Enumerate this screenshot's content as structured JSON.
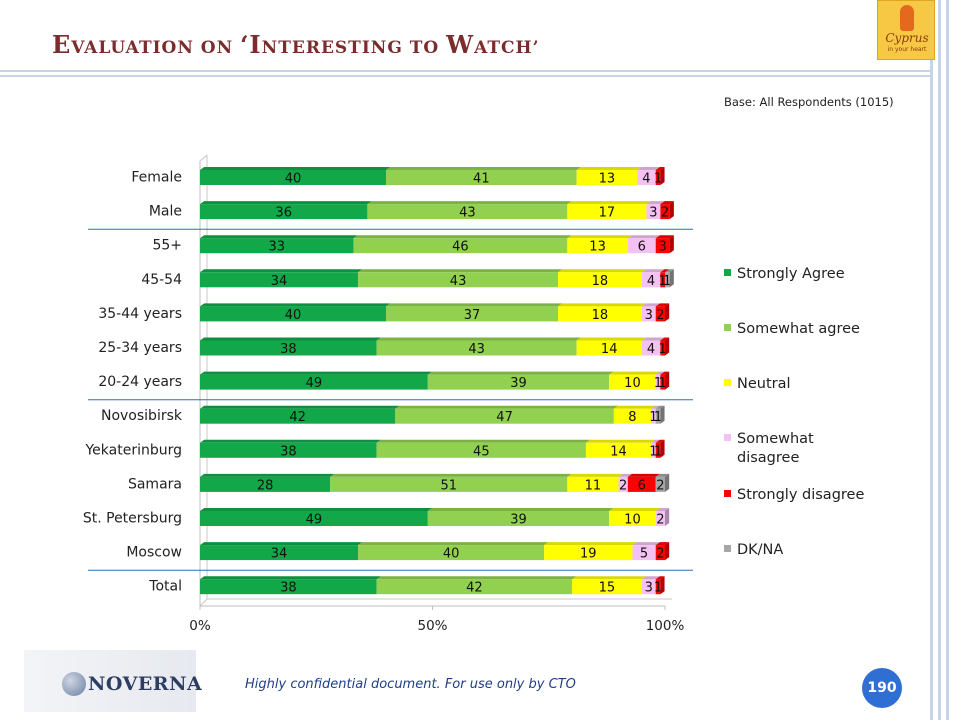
{
  "slide": {
    "title_parts": [
      {
        "text": "E",
        "big": true
      },
      {
        "text": "VALUATION ON ",
        "big": false
      },
      {
        "text": "‘I",
        "big": true
      },
      {
        "text": "NTERESTING TO ",
        "big": false
      },
      {
        "text": "W",
        "big": true
      },
      {
        "text": "ATCH’",
        "big": false
      }
    ],
    "base_note": "Base: All Respondents (1015)",
    "logo_word": "Cyprus",
    "logo_tagline": "in your heart",
    "footer_logo_text": "NOVERNA",
    "confidential_text": "Highly confidential document. For use only by CTO",
    "page_number": "190"
  },
  "chart_data": {
    "type": "bar",
    "orientation": "horizontal",
    "stacked": "100%",
    "categories": [
      "Female",
      "Male",
      "55+",
      "45-54",
      "35-44 years",
      "25-34 years",
      "20-24 years",
      "Novosibirsk",
      "Yekaterinburg",
      "Samara",
      "St. Petersburg",
      "Moscow",
      "Total"
    ],
    "series": [
      {
        "name": "Strongly Agree",
        "color": "#12a84a",
        "values": [
          40,
          36,
          33,
          34,
          40,
          38,
          49,
          42,
          38,
          28,
          49,
          34,
          38
        ]
      },
      {
        "name": "Somewhat agree",
        "color": "#92d050",
        "values": [
          41,
          43,
          46,
          43,
          37,
          43,
          39,
          47,
          45,
          51,
          39,
          40,
          42
        ]
      },
      {
        "name": "Neutral",
        "color": "#ffff00",
        "values": [
          13,
          17,
          13,
          18,
          18,
          14,
          10,
          8,
          14,
          11,
          10,
          19,
          15
        ]
      },
      {
        "name": "Somewhat disagree",
        "color": "#f4c2f2",
        "values": [
          4,
          3,
          6,
          4,
          3,
          4,
          1,
          1,
          1,
          2,
          2,
          5,
          3
        ]
      },
      {
        "name": "Strongly disagree",
        "color": "#ff0000",
        "values": [
          1,
          2,
          3,
          1,
          2,
          1,
          1,
          0,
          1,
          6,
          0,
          2,
          1
        ]
      },
      {
        "name": "DK/NA",
        "color": "#a6a6a6",
        "values": [
          0,
          0,
          0,
          1,
          0,
          0,
          0,
          1,
          0,
          2,
          0,
          0,
          0
        ]
      }
    ],
    "xticks": [
      "0%",
      "50%",
      "100%"
    ],
    "xlim": [
      0,
      100
    ],
    "legend_position": "right",
    "group_separators_after": [
      "Male",
      "20-24 years",
      "Moscow"
    ]
  }
}
